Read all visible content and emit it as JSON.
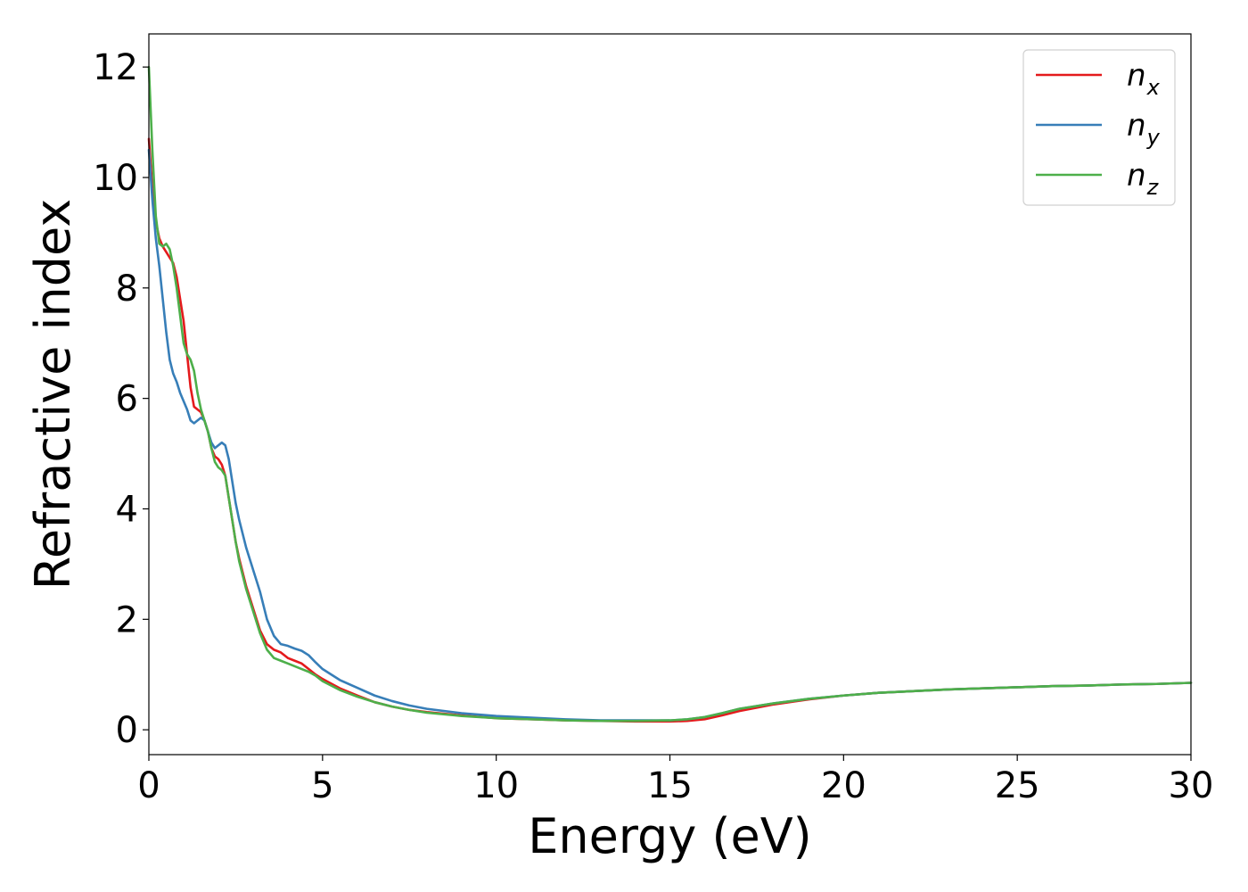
{
  "chart_data": {
    "type": "line",
    "xlabel": "Energy (eV)",
    "ylabel": "Refractive index",
    "xlim": [
      0,
      30
    ],
    "ylim": [
      -0.45,
      12.6
    ],
    "xticks": [
      "0",
      "5",
      "10",
      "15",
      "20",
      "25",
      "30"
    ],
    "yticks": [
      "0",
      "2",
      "4",
      "6",
      "8",
      "10",
      "12"
    ],
    "legend": "top-right",
    "grid": false,
    "series": [
      {
        "name": "n_x",
        "label_base": "n",
        "label_sub": "x",
        "color": "#e41a1c",
        "x": [
          0,
          0.1,
          0.2,
          0.3,
          0.4,
          0.5,
          0.6,
          0.7,
          0.8,
          0.9,
          1.0,
          1.1,
          1.2,
          1.3,
          1.4,
          1.5,
          1.6,
          1.7,
          1.8,
          1.9,
          2.0,
          2.1,
          2.2,
          2.3,
          2.4,
          2.5,
          2.6,
          2.8,
          3.0,
          3.2,
          3.4,
          3.6,
          3.8,
          4.0,
          4.2,
          4.4,
          4.6,
          4.8,
          5.0,
          5.5,
          6.0,
          6.5,
          7.0,
          7.5,
          8,
          9,
          10,
          11,
          12,
          13,
          14,
          15,
          15.5,
          16,
          16.5,
          17,
          18,
          19,
          20,
          21,
          22,
          23,
          24,
          25,
          26,
          27,
          28,
          29,
          30
        ],
        "values": [
          10.7,
          9.8,
          9.2,
          8.9,
          8.75,
          8.65,
          8.55,
          8.45,
          8.2,
          7.8,
          7.4,
          6.8,
          6.2,
          5.85,
          5.8,
          5.75,
          5.6,
          5.4,
          5.1,
          4.95,
          4.9,
          4.8,
          4.6,
          4.2,
          3.8,
          3.4,
          3.1,
          2.6,
          2.2,
          1.8,
          1.55,
          1.45,
          1.4,
          1.3,
          1.25,
          1.2,
          1.1,
          1.0,
          0.92,
          0.75,
          0.62,
          0.5,
          0.42,
          0.36,
          0.32,
          0.26,
          0.21,
          0.19,
          0.17,
          0.16,
          0.15,
          0.15,
          0.16,
          0.19,
          0.26,
          0.34,
          0.46,
          0.55,
          0.62,
          0.67,
          0.7,
          0.73,
          0.75,
          0.77,
          0.79,
          0.8,
          0.82,
          0.83,
          0.85
        ]
      },
      {
        "name": "n_y",
        "label_base": "n",
        "label_sub": "y",
        "color": "#377eb8",
        "x": [
          0,
          0.1,
          0.2,
          0.3,
          0.4,
          0.5,
          0.6,
          0.7,
          0.8,
          0.9,
          1.0,
          1.1,
          1.2,
          1.3,
          1.4,
          1.5,
          1.6,
          1.7,
          1.8,
          1.9,
          2.0,
          2.1,
          2.2,
          2.3,
          2.4,
          2.5,
          2.6,
          2.8,
          3.0,
          3.2,
          3.4,
          3.6,
          3.8,
          4.0,
          4.2,
          4.4,
          4.6,
          4.8,
          5.0,
          5.5,
          6.0,
          6.5,
          7.0,
          7.5,
          8,
          9,
          10,
          11,
          12,
          13,
          14,
          15,
          15.5,
          16,
          16.5,
          17,
          18,
          19,
          20,
          21,
          22,
          23,
          24,
          25,
          26,
          27,
          28,
          29,
          30
        ],
        "values": [
          10.5,
          9.6,
          8.9,
          8.4,
          7.8,
          7.2,
          6.7,
          6.45,
          6.3,
          6.1,
          5.95,
          5.8,
          5.6,
          5.55,
          5.6,
          5.65,
          5.6,
          5.4,
          5.2,
          5.1,
          5.15,
          5.2,
          5.15,
          4.9,
          4.5,
          4.1,
          3.8,
          3.3,
          2.9,
          2.5,
          2.0,
          1.7,
          1.55,
          1.52,
          1.47,
          1.43,
          1.35,
          1.22,
          1.1,
          0.9,
          0.76,
          0.62,
          0.52,
          0.44,
          0.38,
          0.3,
          0.25,
          0.22,
          0.19,
          0.17,
          0.17,
          0.17,
          0.19,
          0.23,
          0.3,
          0.38,
          0.48,
          0.56,
          0.62,
          0.67,
          0.7,
          0.73,
          0.75,
          0.77,
          0.79,
          0.8,
          0.82,
          0.83,
          0.85
        ]
      },
      {
        "name": "n_z",
        "label_base": "n",
        "label_sub": "z",
        "color": "#4daf4a",
        "x": [
          0,
          0.1,
          0.2,
          0.3,
          0.4,
          0.5,
          0.6,
          0.7,
          0.8,
          0.9,
          1.0,
          1.1,
          1.2,
          1.3,
          1.4,
          1.5,
          1.6,
          1.7,
          1.8,
          1.9,
          2.0,
          2.1,
          2.2,
          2.3,
          2.4,
          2.5,
          2.6,
          2.8,
          3.0,
          3.2,
          3.4,
          3.6,
          3.8,
          4.0,
          4.2,
          4.4,
          4.6,
          4.8,
          5.0,
          5.5,
          6.0,
          6.5,
          7.0,
          7.5,
          8,
          9,
          10,
          11,
          12,
          13,
          14,
          15,
          15.5,
          16,
          16.5,
          17,
          18,
          19,
          20,
          21,
          22,
          23,
          24,
          25,
          26,
          27,
          28,
          29,
          30
        ],
        "values": [
          12.0,
          10.5,
          9.3,
          8.8,
          8.75,
          8.8,
          8.7,
          8.4,
          8.0,
          7.5,
          7.0,
          6.8,
          6.7,
          6.5,
          6.1,
          5.8,
          5.6,
          5.4,
          5.1,
          4.85,
          4.75,
          4.7,
          4.6,
          4.2,
          3.8,
          3.4,
          3.05,
          2.55,
          2.15,
          1.75,
          1.45,
          1.3,
          1.25,
          1.2,
          1.15,
          1.1,
          1.05,
          0.98,
          0.88,
          0.72,
          0.6,
          0.5,
          0.42,
          0.36,
          0.31,
          0.25,
          0.21,
          0.19,
          0.17,
          0.16,
          0.16,
          0.17,
          0.19,
          0.23,
          0.3,
          0.38,
          0.48,
          0.56,
          0.62,
          0.67,
          0.7,
          0.73,
          0.75,
          0.77,
          0.79,
          0.8,
          0.82,
          0.83,
          0.85
        ]
      }
    ]
  }
}
